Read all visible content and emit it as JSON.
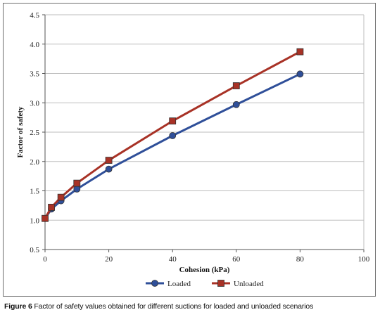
{
  "chart_data": {
    "type": "line",
    "xlabel": "Cohesion (kPa)",
    "ylabel": "Factor of safety",
    "xlim": [
      0,
      100
    ],
    "ylim": [
      0.5,
      4.5
    ],
    "x_ticks": [
      "0",
      "20",
      "40",
      "60",
      "80",
      "100"
    ],
    "y_ticks": [
      "0.5",
      "1.0",
      "1.5",
      "2.0",
      "2.5",
      "3.0",
      "3.5",
      "4.0",
      "4.5"
    ],
    "grid": "horizontal",
    "legend_position": "bottom",
    "series": [
      {
        "name": "Loaded",
        "color": "#2f4f99",
        "marker": "circle",
        "x": [
          0,
          2,
          5,
          10,
          20,
          40,
          60,
          80
        ],
        "y": [
          1.03,
          1.19,
          1.33,
          1.53,
          1.87,
          2.44,
          2.97,
          3.49
        ]
      },
      {
        "name": "Unloaded",
        "color": "#a83226",
        "marker": "square",
        "x": [
          0,
          2,
          5,
          10,
          20,
          40,
          60,
          80
        ],
        "y": [
          1.03,
          1.22,
          1.39,
          1.63,
          2.02,
          2.69,
          3.29,
          3.87
        ]
      }
    ]
  },
  "caption": {
    "label": "Figure 6",
    "text": " Factor of safety values obtained for different suctions for loaded and unloaded scenarios"
  }
}
